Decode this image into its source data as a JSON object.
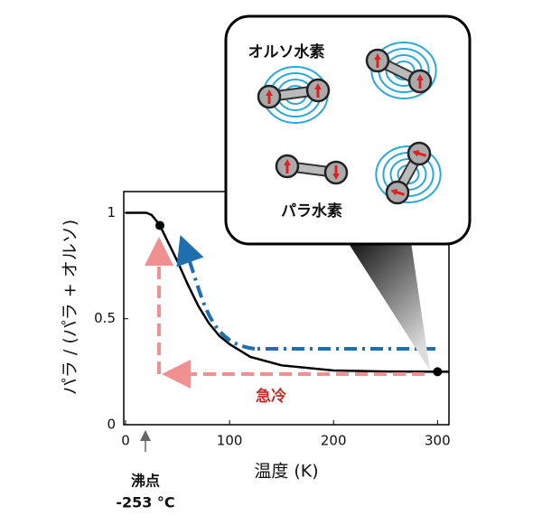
{
  "chart_data": {
    "type": "line",
    "x": [
      0,
      20,
      25,
      30,
      35,
      40,
      45,
      50,
      60,
      70,
      80,
      90,
      100,
      120,
      150,
      200,
      250,
      300,
      311
    ],
    "series": [
      {
        "color": "#000000",
        "values": [
          1.0,
          1.0,
          0.99,
          0.96,
          0.92,
          0.87,
          0.82,
          0.77,
          0.66,
          0.56,
          0.48,
          0.42,
          0.38,
          0.32,
          0.28,
          0.256,
          0.251,
          0.25,
          0.25
        ]
      }
    ],
    "points": {
      "x": [
        33,
        300
      ],
      "values": [
        0.94,
        0.25
      ],
      "color": "#000000"
    },
    "xlim": [
      0,
      311
    ],
    "ylim": [
      0,
      1.1
    ],
    "xticks": [
      0,
      100,
      200,
      300
    ],
    "yticks": [
      0,
      0.5,
      1
    ],
    "xlabel": "温度 (K)",
    "ylabel": "パラ / (パラ + オルソ)",
    "annotations": {
      "ortho": "オルソ水素",
      "para": "パラ水素",
      "quench": "急冷",
      "boiling": "沸点",
      "boiling_temp": "-253 °C"
    }
  }
}
